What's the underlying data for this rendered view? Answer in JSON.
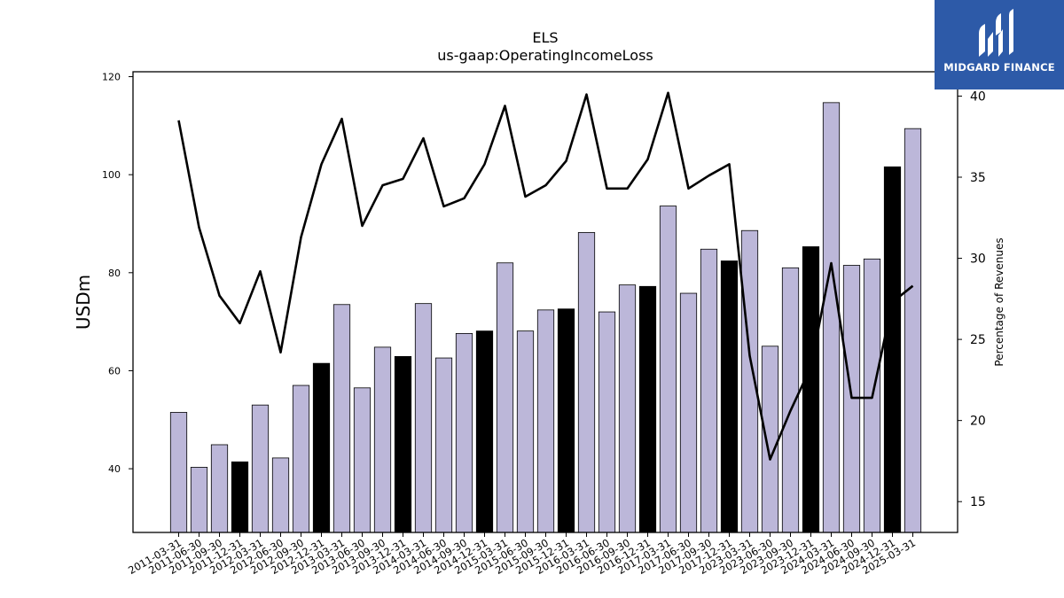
{
  "chart_data": {
    "type": "bar",
    "title": "ELS",
    "subtitle": "us-gaap:OperatingIncomeLoss",
    "ylabel": "USDm",
    "y2label": "Percentage of Revenues",
    "ylim": [
      27,
      121
    ],
    "y2lim": [
      13.1,
      41.5
    ],
    "yticks": [
      40,
      60,
      80,
      100,
      120
    ],
    "y2ticks": [
      15,
      20,
      25,
      30,
      35,
      40
    ],
    "grid": false,
    "categories": [
      "2011-03-31",
      "2011-06-30",
      "2011-09-30",
      "2011-12-31",
      "2012-03-31",
      "2012-06-30",
      "2012-09-30",
      "2012-12-31",
      "2013-03-31",
      "2013-06-30",
      "2013-09-30",
      "2013-12-31",
      "2014-03-31",
      "2014-06-30",
      "2014-09-30",
      "2014-12-31",
      "2015-03-31",
      "2015-06-30",
      "2015-09-30",
      "2015-12-31",
      "2016-03-31",
      "2016-06-30",
      "2016-09-30",
      "2016-12-31",
      "2017-03-31",
      "2017-06-30",
      "2017-09-30",
      "2017-12-31",
      "2023-03-31",
      "2023-06-30",
      "2023-09-30",
      "2023-12-31",
      "2024-03-31",
      "2024-06-30",
      "2024-09-30",
      "2024-12-31",
      "2025-03-31"
    ],
    "series": [
      {
        "kind": "bar",
        "values": [
          51.5,
          40.3,
          44.9,
          41.4,
          53.0,
          42.2,
          57.0,
          61.5,
          73.5,
          56.5,
          64.8,
          62.9,
          73.7,
          62.6,
          67.6,
          68.1,
          82.0,
          68.1,
          72.4,
          72.6,
          88.2,
          72.0,
          77.5,
          77.2,
          93.6,
          75.8,
          84.8,
          82.4,
          88.6,
          65.0,
          81.0,
          85.3,
          114.7,
          81.5,
          82.8,
          101.6,
          109.4
        ],
        "highlight": [
          false,
          false,
          false,
          true,
          false,
          false,
          false,
          true,
          false,
          false,
          false,
          true,
          false,
          false,
          false,
          true,
          false,
          false,
          false,
          true,
          false,
          false,
          false,
          true,
          false,
          false,
          false,
          true,
          false,
          false,
          false,
          true,
          false,
          false,
          false,
          true,
          false
        ]
      },
      {
        "kind": "line",
        "axis": "right",
        "values": [
          38.5,
          31.9,
          27.7,
          26.0,
          29.2,
          24.2,
          31.3,
          35.8,
          38.6,
          32.0,
          34.5,
          34.9,
          37.4,
          33.2,
          33.7,
          35.8,
          39.4,
          33.8,
          34.5,
          36.0,
          40.1,
          34.3,
          34.3,
          36.1,
          40.2,
          34.3,
          35.1,
          35.8,
          24.0,
          17.6,
          20.6,
          23.3,
          29.7,
          21.4,
          21.4,
          27.3,
          28.3
        ]
      }
    ],
    "colors": {
      "bar": "#bcb7d9",
      "bar_highlight": "#000000",
      "line": "#000000",
      "edge": "#000000"
    }
  },
  "logo": {
    "text": "MIDGARD FINANCE",
    "background": "#2d5aa8"
  }
}
